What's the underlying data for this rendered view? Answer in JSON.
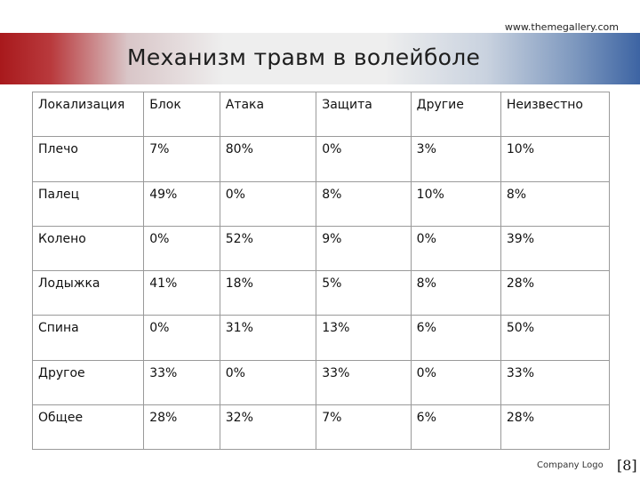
{
  "header": {
    "url": "www.themegallery.com",
    "title": "Механизм травм в волейболе"
  },
  "table": {
    "headers": [
      "Локализация",
      "Блок",
      "Атака",
      "Защита",
      "Другие",
      "Неизвестно"
    ],
    "rows": [
      [
        "Плечо",
        "7%",
        "80%",
        "0%",
        "3%",
        "10%"
      ],
      [
        "Палец",
        "49%",
        "0%",
        "8%",
        "10%",
        "8%"
      ],
      [
        "Колено",
        "0%",
        "52%",
        "9%",
        "0%",
        "39%"
      ],
      [
        "Лодыжка",
        "41%",
        "18%",
        "5%",
        "8%",
        "28%"
      ],
      [
        "Спина",
        "0%",
        "31%",
        "13%",
        "6%",
        "50%"
      ],
      [
        "Другое",
        "33%",
        "0%",
        "33%",
        "0%",
        "33%"
      ],
      [
        "Общее",
        "28%",
        "32%",
        "7%",
        "6%",
        "28%"
      ]
    ]
  },
  "footer": {
    "company_logo": "Company Logo",
    "page_number": "[8]"
  },
  "colors": {
    "band_left": "#a8191c",
    "band_right": "#3d64a3",
    "table_border": "#9a9a9a"
  }
}
